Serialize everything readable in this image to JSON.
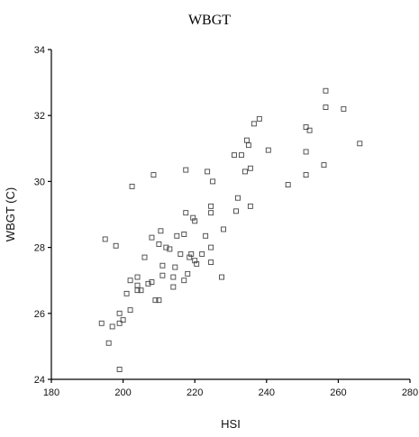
{
  "chart_data": {
    "type": "scatter",
    "title": "WBGT",
    "xlabel": "HSI",
    "ylabel": "WBGT (C)",
    "xlim": [
      180,
      280
    ],
    "ylim": [
      24,
      34
    ],
    "xticks": [
      180,
      200,
      220,
      240,
      260,
      280
    ],
    "yticks": [
      24,
      26,
      28,
      30,
      32,
      34
    ],
    "grid": false,
    "legend": "none",
    "marker": "open-square",
    "marker_color": "#444444",
    "series": [
      {
        "points": [
          [
            194,
            25.7
          ],
          [
            195,
            28.25
          ],
          [
            196,
            25.1
          ],
          [
            197,
            25.6
          ],
          [
            198,
            28.05
          ],
          [
            199,
            24.3
          ],
          [
            199,
            25.7
          ],
          [
            199,
            26.0
          ],
          [
            200,
            25.8
          ],
          [
            201,
            26.6
          ],
          [
            202,
            26.1
          ],
          [
            202,
            27.0
          ],
          [
            202.5,
            29.85
          ],
          [
            204,
            26.7
          ],
          [
            204,
            26.85
          ],
          [
            204,
            27.1
          ],
          [
            205,
            26.7
          ],
          [
            206,
            27.7
          ],
          [
            207,
            26.9
          ],
          [
            208,
            28.3
          ],
          [
            208,
            26.95
          ],
          [
            208.5,
            30.2
          ],
          [
            209,
            26.4
          ],
          [
            210,
            26.4
          ],
          [
            210,
            28.1
          ],
          [
            210.5,
            28.5
          ],
          [
            211,
            27.45
          ],
          [
            211,
            27.15
          ],
          [
            212,
            28.0
          ],
          [
            213,
            27.95
          ],
          [
            214,
            26.8
          ],
          [
            214,
            27.1
          ],
          [
            214.5,
            27.4
          ],
          [
            215,
            28.35
          ],
          [
            216,
            27.8
          ],
          [
            217,
            27.0
          ],
          [
            217,
            28.4
          ],
          [
            217.5,
            29.05
          ],
          [
            217.5,
            30.35
          ],
          [
            218,
            27.2
          ],
          [
            218.5,
            27.7
          ],
          [
            219,
            27.8
          ],
          [
            219.5,
            28.9
          ],
          [
            220,
            27.6
          ],
          [
            220,
            28.8
          ],
          [
            220.5,
            27.5
          ],
          [
            222,
            27.8
          ],
          [
            223,
            28.35
          ],
          [
            223.5,
            30.3
          ],
          [
            224.5,
            27.55
          ],
          [
            224.5,
            28.0
          ],
          [
            224.5,
            29.05
          ],
          [
            224.5,
            29.25
          ],
          [
            225,
            30.0
          ],
          [
            227.5,
            27.1
          ],
          [
            228,
            28.55
          ],
          [
            231,
            30.8
          ],
          [
            231.5,
            29.1
          ],
          [
            232,
            29.5
          ],
          [
            233,
            30.8
          ],
          [
            234,
            30.3
          ],
          [
            234.5,
            31.25
          ],
          [
            235,
            31.1
          ],
          [
            235.5,
            29.25
          ],
          [
            235.5,
            30.4
          ],
          [
            236.5,
            31.75
          ],
          [
            238,
            31.9
          ],
          [
            240.5,
            30.95
          ],
          [
            246,
            29.9
          ],
          [
            251,
            30.2
          ],
          [
            251,
            30.9
          ],
          [
            251,
            31.65
          ],
          [
            252,
            31.55
          ],
          [
            256,
            30.5
          ],
          [
            256.5,
            32.25
          ],
          [
            256.5,
            32.75
          ],
          [
            261.5,
            32.2
          ],
          [
            266,
            31.15
          ]
        ]
      }
    ]
  }
}
